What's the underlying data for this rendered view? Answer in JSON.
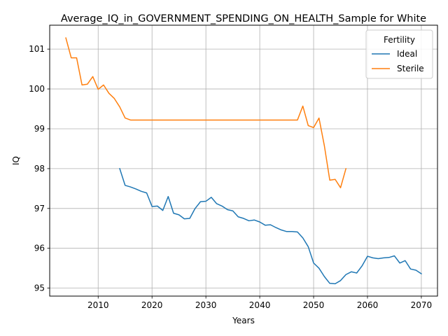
{
  "chart_data": {
    "type": "line",
    "title": "Average_IQ_in_GOVERNMENT_SPENDING_ON_HEALTH_Sample for White",
    "xlabel": "Years",
    "ylabel": "IQ",
    "xlim": [
      2001,
      2073
    ],
    "ylim": [
      94.8,
      101.6
    ],
    "xticks": [
      2010,
      2020,
      2030,
      2040,
      2050,
      2060,
      2070
    ],
    "yticks": [
      95,
      96,
      97,
      98,
      99,
      100,
      101
    ],
    "grid": true,
    "legend": {
      "title": "Fertility",
      "placement": "top-right"
    },
    "series": [
      {
        "name": "Ideal",
        "color": "#1f77b4",
        "x": [
          2014,
          2015,
          2016,
          2017,
          2018,
          2019,
          2020,
          2021,
          2022,
          2023,
          2024,
          2025,
          2026,
          2027,
          2028,
          2029,
          2030,
          2031,
          2032,
          2033,
          2034,
          2035,
          2036,
          2037,
          2038,
          2039,
          2040,
          2041,
          2042,
          2043,
          2044,
          2045,
          2046,
          2047,
          2048,
          2049,
          2050,
          2051,
          2052,
          2053,
          2054,
          2055,
          2056,
          2057,
          2058,
          2059,
          2060,
          2061,
          2062,
          2063,
          2064,
          2065,
          2066,
          2067,
          2068,
          2069,
          2070
        ],
        "values": [
          98.0,
          97.58,
          97.54,
          97.49,
          97.43,
          97.39,
          97.05,
          97.06,
          96.95,
          97.3,
          96.88,
          96.84,
          96.74,
          96.75,
          97.0,
          97.17,
          97.18,
          97.28,
          97.12,
          97.06,
          96.97,
          96.94,
          96.79,
          96.75,
          96.69,
          96.71,
          96.66,
          96.58,
          96.59,
          96.52,
          96.46,
          96.42,
          96.42,
          96.41,
          96.26,
          96.04,
          95.63,
          95.5,
          95.29,
          95.12,
          95.11,
          95.19,
          95.34,
          95.41,
          95.38,
          95.56,
          95.8,
          95.76,
          95.74,
          95.76,
          95.77,
          95.81,
          95.63,
          95.69,
          95.48,
          95.45,
          95.36
        ]
      },
      {
        "name": "Sterile",
        "color": "#ff7f0e",
        "x": [
          2004,
          2005,
          2006,
          2007,
          2008,
          2009,
          2010,
          2011,
          2012,
          2013,
          2014,
          2015,
          2016,
          2017,
          2018,
          2019,
          2020,
          2021,
          2022,
          2023,
          2024,
          2025,
          2026,
          2027,
          2028,
          2029,
          2030,
          2031,
          2032,
          2033,
          2034,
          2035,
          2036,
          2037,
          2038,
          2039,
          2040,
          2041,
          2042,
          2043,
          2044,
          2045,
          2046,
          2047,
          2048,
          2049,
          2050,
          2051,
          2052,
          2053,
          2054,
          2055,
          2056
        ],
        "values": [
          101.28,
          100.78,
          100.78,
          100.1,
          100.12,
          100.31,
          99.99,
          100.1,
          99.89,
          99.76,
          99.55,
          99.27,
          99.22,
          99.22,
          99.22,
          99.22,
          99.22,
          99.22,
          99.22,
          99.22,
          99.22,
          99.22,
          99.22,
          99.22,
          99.22,
          99.22,
          99.22,
          99.22,
          99.22,
          99.22,
          99.22,
          99.22,
          99.22,
          99.22,
          99.22,
          99.22,
          99.22,
          99.22,
          99.22,
          99.22,
          99.22,
          99.22,
          99.22,
          99.22,
          99.57,
          99.08,
          99.03,
          99.27,
          98.57,
          97.71,
          97.73,
          97.52,
          98.0
        ]
      }
    ]
  }
}
